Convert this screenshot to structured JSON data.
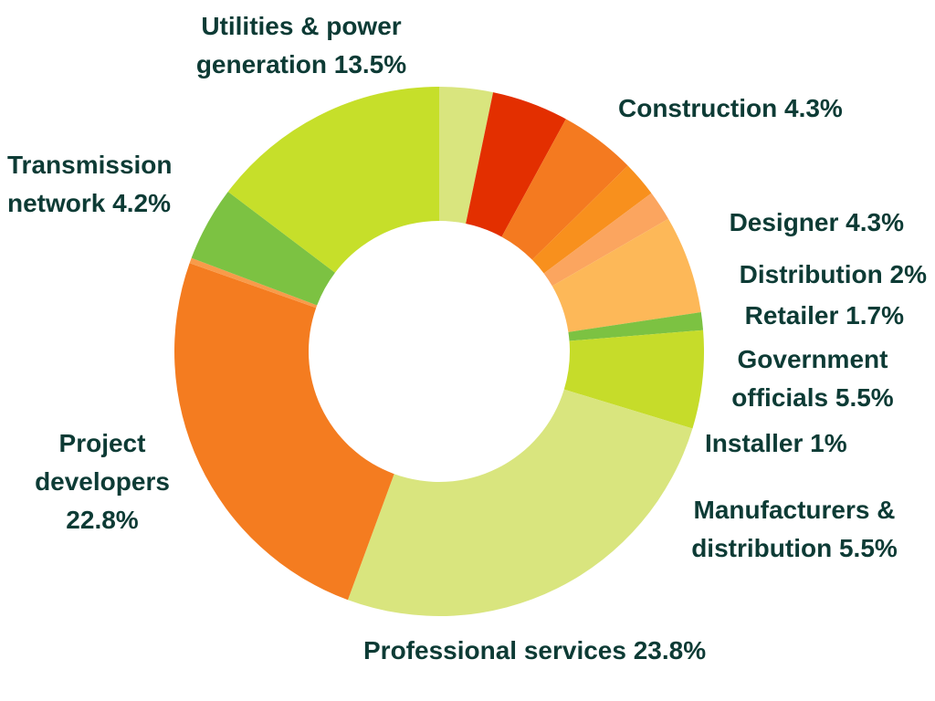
{
  "chart_data": {
    "type": "donut",
    "categories": [
      null,
      "Construction",
      "Designer",
      "Distribution",
      "Retailer",
      "Government officials",
      "Installer",
      "Manufacturers & distribution",
      "Professional services",
      "Project developers",
      null,
      "Transmission network",
      "Utilities & power generation"
    ],
    "values": [
      3,
      4.3,
      4.3,
      2,
      1.7,
      5.5,
      1,
      5.5,
      23.8,
      22.8,
      0.3,
      4.2,
      13.5
    ],
    "value_labels": [
      null,
      "4.3%",
      "4.3%",
      "2%",
      "1.7%",
      "5.5%",
      "1%",
      "5.5%",
      "23.8%",
      "22.8%",
      null,
      "4.2%",
      "13.5%"
    ],
    "colors": [
      "#d9e57e",
      "#e32f00",
      "#f47a20",
      "#f8901d",
      "#fba55f",
      "#fdb858",
      "#7cc242",
      "#c6dc2a",
      "#d9e57e",
      "#f47c20",
      "#f89b4a",
      "#7cc242",
      "#c6df2a"
    ]
  }
}
